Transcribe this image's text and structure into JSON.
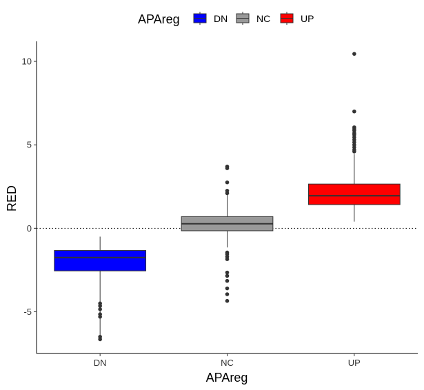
{
  "chart_data": {
    "type": "boxplot",
    "xlabel": "APAreg",
    "ylabel": "RED",
    "categories": [
      "DN",
      "NC",
      "UP"
    ],
    "ylim": [
      -7.5,
      11.2
    ],
    "yticks": [
      -5,
      0,
      5,
      10
    ],
    "ytick_labels": [
      "-5",
      "0",
      "5",
      "10"
    ],
    "reference_line": {
      "y": 0,
      "style": "dotted"
    },
    "legend": {
      "title": "APAreg",
      "position": "top",
      "entries": [
        "DN",
        "NC",
        "UP"
      ]
    },
    "series": [
      {
        "name": "DN",
        "color": "#0000ff",
        "whisker_low": -6.6,
        "q1": -2.55,
        "median": -1.75,
        "q3": -1.33,
        "whisker_high": -0.5,
        "outliers": [
          -4.5,
          -4.65,
          -4.85,
          -5.15,
          -5.3,
          -6.5,
          -6.65
        ]
      },
      {
        "name": "NC",
        "color": "#999999",
        "whisker_low": -1.15,
        "q1": -0.15,
        "median": 0.27,
        "q3": 0.7,
        "whisker_high": 2.05,
        "outliers": [
          3.7,
          3.6,
          2.75,
          2.25,
          2.1,
          -1.45,
          -1.55,
          -1.7,
          -1.85,
          -2.65,
          -2.85,
          -3.15,
          -3.6,
          -3.95,
          -4.35
        ]
      },
      {
        "name": "UP",
        "color": "#ff0000",
        "whisker_low": 0.4,
        "q1": 1.42,
        "median": 1.95,
        "q3": 2.65,
        "whisker_high": 4.45,
        "outliers": [
          10.45,
          7.0,
          6.05,
          5.95,
          5.85,
          5.7,
          5.6,
          5.45,
          5.3,
          5.15,
          5.0,
          4.85,
          4.7,
          4.6
        ]
      }
    ]
  }
}
